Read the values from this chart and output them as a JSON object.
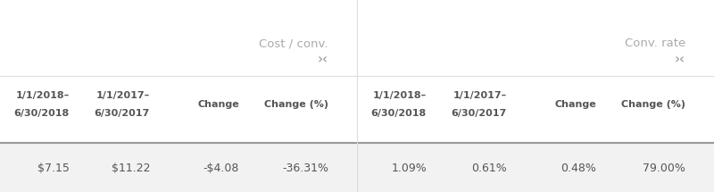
{
  "bg_color": "#ffffff",
  "header_bg": "#ffffff",
  "data_bg": "#f2f2f2",
  "header_text_color": "#aaaaaa",
  "subheader_text_color": "#555555",
  "data_text_color": "#555555",
  "divider_light": "#dddddd",
  "divider_heavy": "#999999",
  "section1_header": "Cost / conv.",
  "section2_header": "Conv. rate",
  "sort_icon": "›‹",
  "col_headers_left": [
    "1/1/2018–\n6/30/2018",
    "1/1/2017–\n6/30/2017",
    "Change",
    "Change (%)"
  ],
  "col_headers_right": [
    "1/1/2018–\n6/30/2018",
    "1/1/2017–\n6/30/2017",
    "Change",
    "Change (%)"
  ],
  "row1": [
    "$7.15",
    "$11.22",
    "-$4.08",
    "-36.31%"
  ],
  "row2": [
    "1.09%",
    "0.61%",
    "0.48%",
    "79.00%"
  ],
  "figwidth": 8.0,
  "figheight": 2.15,
  "dpi": 100
}
